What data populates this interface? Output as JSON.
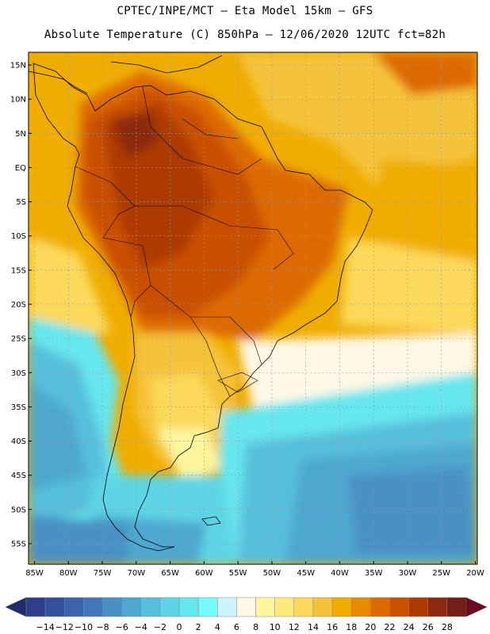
{
  "title": {
    "line1": "CPTEC/INPE/MCT –  Eta Model 15km – GFS",
    "line2": "Absolute Temperature (C) 850hPa – 12/06/2020 12UTC fct=82h"
  },
  "axes": {
    "lat_labels": [
      "15N",
      "10N",
      "5N",
      "EQ",
      "5S",
      "10S",
      "15S",
      "20S",
      "25S",
      "30S",
      "35S",
      "40S",
      "45S",
      "50S",
      "55S"
    ],
    "lon_labels": [
      "85W",
      "80W",
      "75W",
      "70W",
      "65W",
      "60W",
      "55W",
      "50W",
      "45W",
      "40W",
      "35W",
      "30W",
      "25W",
      "20W"
    ]
  },
  "colorbar": {
    "labels": [
      "-14",
      "-12",
      "-10",
      "-8",
      "-6",
      "-4",
      "-2",
      "0",
      "2",
      "4",
      "6",
      "8",
      "10",
      "12",
      "14",
      "16",
      "18",
      "20",
      "22",
      "24",
      "26",
      "28"
    ],
    "colors": [
      "#2d3f8c",
      "#344f9c",
      "#3b63aa",
      "#4276b8",
      "#4990c4",
      "#4ea7cf",
      "#56bfdc",
      "#5dd5e6",
      "#66e6ee",
      "#73fbff",
      "#cdf5ff",
      "#fff8e6",
      "#fff59d",
      "#ffe97a",
      "#fcd95a",
      "#f5c33a",
      "#f0ad00",
      "#e88a00",
      "#dd6a00",
      "#c95000",
      "#ad3a00",
      "#8c2a10",
      "#702018"
    ],
    "under_color": "#1f2d6e",
    "over_color": "#6d0a1f"
  },
  "icons": {
    "under_arrow": "left-triangle-icon",
    "over_arrow": "right-triangle-icon"
  }
}
